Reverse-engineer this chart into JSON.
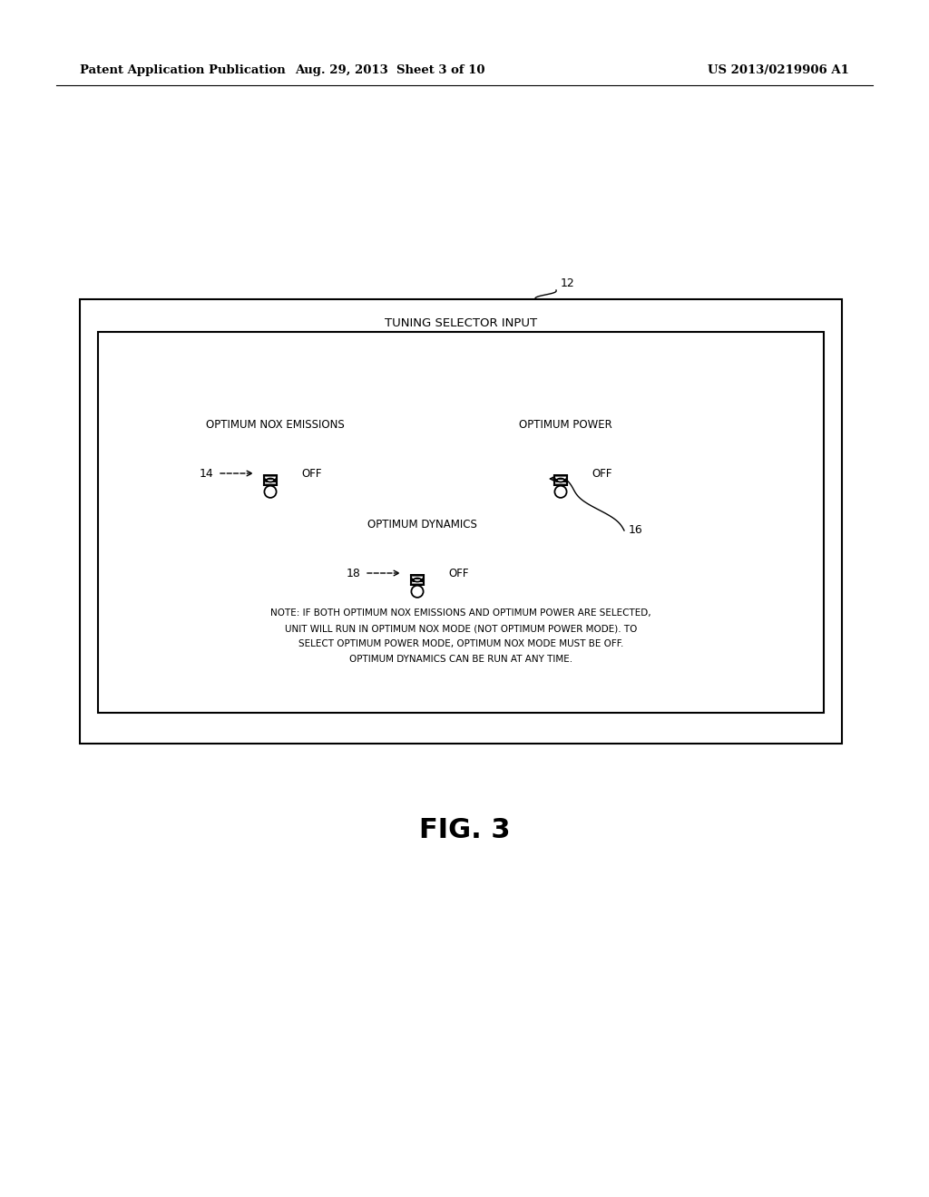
{
  "background_color": "#ffffff",
  "header_text_left": "Patent Application Publication",
  "header_text_mid": "Aug. 29, 2013  Sheet 3 of 10",
  "header_text_right": "US 2013/0219906 A1",
  "outer_title": "TUNING SELECTOR INPUT",
  "label_12": "12",
  "label_14": "14",
  "label_16": "16",
  "label_18": "18",
  "label_nox": "OPTIMUM NOX EMISSIONS",
  "label_power": "OPTIMUM POWER",
  "label_dynamics": "OPTIMUM DYNAMICS",
  "off_text": "OFF",
  "note_line1": "NOTE: IF BOTH OPTIMUM NOX EMISSIONS AND OPTIMUM POWER ARE SELECTED,",
  "note_line2": "UNIT WILL RUN IN OPTIMUM NOX MODE (NOT OPTIMUM POWER MODE). TO",
  "note_line3": "SELECT OPTIMUM POWER MODE, OPTIMUM NOX MODE MUST BE OFF.",
  "note_line4": "OPTIMUM DYNAMICS CAN BE RUN AT ANY TIME.",
  "fig_label": "FIG. 3"
}
